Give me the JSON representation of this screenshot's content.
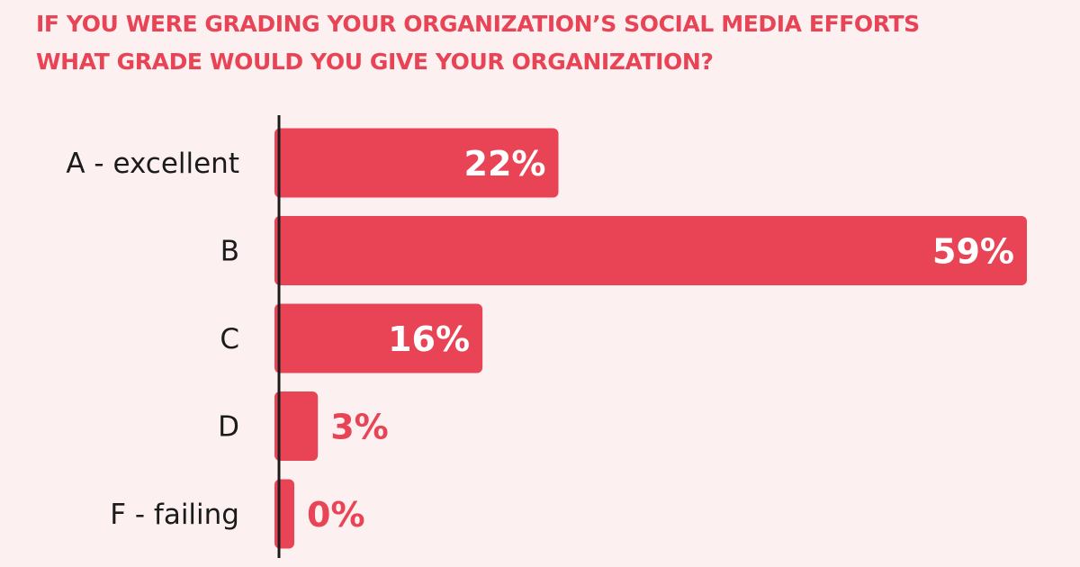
{
  "title": {
    "line1": "IF YOU WERE GRADING YOUR ORGANIZATION’S SOCIAL MEDIA EFFORTS",
    "line2": "WHAT GRADE WOULD YOU GIVE YOUR ORGANIZATION?"
  },
  "colors": {
    "background": "#fcf0f1",
    "accent": "#e84455",
    "axis": "#1b1b1b",
    "label_inside": "#ffffff"
  },
  "chart_data": {
    "type": "bar",
    "orientation": "horizontal",
    "title": "IF YOU WERE GRADING YOUR ORGANIZATION’S SOCIAL MEDIA EFFORTS WHAT GRADE WOULD YOU GIVE YOUR ORGANIZATION?",
    "categories": [
      "A - excellent",
      "B",
      "C",
      "D",
      "F - failing"
    ],
    "values": [
      22,
      59,
      16,
      3,
      0
    ],
    "value_labels": [
      "22%",
      "59%",
      "16%",
      "3%",
      "0%"
    ],
    "unit": "%",
    "xlim": [
      0,
      59
    ],
    "grid": false,
    "legend": "none"
  }
}
